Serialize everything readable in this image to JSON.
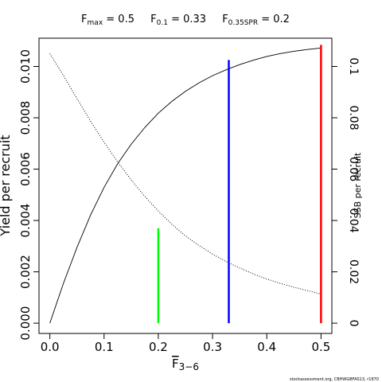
{
  "chart_data": {
    "type": "line",
    "title_parts": [
      {
        "main": "F",
        "sub": "max",
        "value": " = 0.5"
      },
      {
        "main": "F",
        "sub": "0.1",
        "value": " = 0.33"
      },
      {
        "main": "F",
        "sub": "0.35SPR",
        "value": " = 0.2"
      }
    ],
    "xlabel": {
      "main": "F",
      "sub": "3−6"
    },
    "ylabel_left": "Yield per recruit",
    "ylabel_right": "SSB per recruit",
    "xlim": [
      -0.02,
      0.52
    ],
    "ylim_left": [
      -0.0004,
      0.0111
    ],
    "ylim_right": [
      -0.004,
      0.111
    ],
    "x_ticks": [
      0.0,
      0.1,
      0.2,
      0.3,
      0.4,
      0.5
    ],
    "x_tick_labels": [
      "0.0",
      "0.1",
      "0.2",
      "0.3",
      "0.4",
      "0.5"
    ],
    "y_left_ticks": [
      0.0,
      0.002,
      0.004,
      0.006,
      0.008,
      0.01
    ],
    "y_left_tick_labels": [
      "0.000",
      "0.002",
      "0.004",
      "0.006",
      "0.008",
      "0.010"
    ],
    "y_right_ticks": [
      0.0,
      0.02,
      0.04,
      0.06,
      0.08,
      0.1
    ],
    "y_right_tick_labels": [
      "0",
      "0.02",
      "0.04",
      "0.06",
      "0.08",
      "0.1"
    ],
    "series": [
      {
        "axis": "left",
        "style": "solid",
        "color": "#000000",
        "x": [
          0.0,
          0.025,
          0.05,
          0.075,
          0.1,
          0.125,
          0.15,
          0.175,
          0.2,
          0.225,
          0.25,
          0.275,
          0.3,
          0.325,
          0.35,
          0.375,
          0.4,
          0.425,
          0.45,
          0.475,
          0.5
        ],
        "y": [
          0.0,
          0.00155,
          0.00295,
          0.00421,
          0.00529,
          0.00621,
          0.00697,
          0.00762,
          0.00818,
          0.00864,
          0.00903,
          0.00936,
          0.00964,
          0.00987,
          0.01007,
          0.01024,
          0.01039,
          0.0105,
          0.01059,
          0.01066,
          0.01072
        ]
      },
      {
        "axis": "right",
        "style": "dotted",
        "color": "#000000",
        "x": [
          0.0,
          0.025,
          0.05,
          0.075,
          0.1,
          0.125,
          0.15,
          0.175,
          0.2,
          0.225,
          0.25,
          0.275,
          0.3,
          0.325,
          0.35,
          0.375,
          0.4,
          0.425,
          0.45,
          0.475,
          0.5
        ],
        "y": [
          0.105,
          0.0965,
          0.0875,
          0.0787,
          0.0705,
          0.0628,
          0.0558,
          0.0494,
          0.0437,
          0.0385,
          0.034,
          0.0303,
          0.0269,
          0.024,
          0.0215,
          0.0192,
          0.0172,
          0.0155,
          0.014,
          0.0127,
          0.0113
        ]
      }
    ],
    "reference_lines": [
      {
        "x": 0.2,
        "y_top": 0.0037,
        "color": "#00ff00"
      },
      {
        "x": 0.33,
        "y_top": 0.01025,
        "color": "#0000ff"
      },
      {
        "x": 0.5,
        "y_top": 0.01084,
        "color": "#ff0000"
      }
    ],
    "caption": "stockassessment.org, CBHWGBFAS13, r1870"
  }
}
